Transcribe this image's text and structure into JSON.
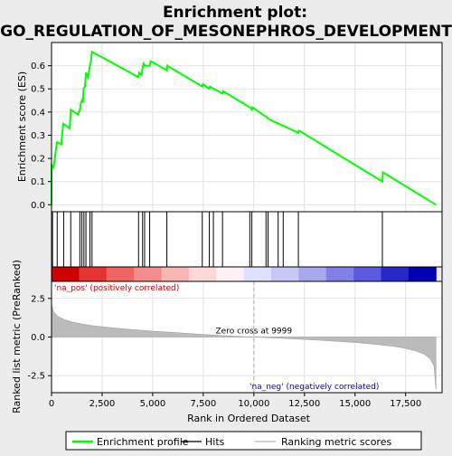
{
  "chart_data": {
    "type": "line",
    "title": "Enrichment plot:\nGO_REGULATION_OF_MESONEPHROS_DEVELOPMENT",
    "title_lines": [
      "Enrichment plot:",
      "GO_REGULATION_OF_MESONEPHROS_DEVELOPMENT"
    ],
    "top_panel": {
      "ylabel": "Enrichment score (ES)",
      "ylim": [
        -0.03,
        0.7
      ],
      "yticks": [
        0.0,
        0.1,
        0.2,
        0.3,
        0.4,
        0.5,
        0.6
      ],
      "ytick_labels": [
        "0.0",
        "0.1",
        "0.2",
        "0.3",
        "0.4",
        "0.5",
        "0.6"
      ],
      "grid": true,
      "series_color": "#00ff00",
      "es_curve": {
        "x": [
          0,
          1,
          100,
          270,
          300,
          480,
          580,
          900,
          950,
          1300,
          1400,
          1450,
          1500,
          1550,
          1580,
          1650,
          1700,
          1800,
          1900,
          1950,
          2000,
          4300,
          4320,
          4450,
          4500,
          4550,
          4620,
          4850,
          4900,
          5700,
          5720,
          7450,
          7480,
          7800,
          7830,
          8000,
          8030,
          8450,
          8480,
          9800,
          9830,
          9900,
          9930,
          10600,
          10630,
          10700,
          10730,
          11200,
          11230,
          11450,
          11480,
          12200,
          12230,
          16350,
          16380,
          19000
        ],
        "y": [
          0.0,
          0.17,
          0.16,
          0.27,
          0.27,
          0.26,
          0.35,
          0.33,
          0.41,
          0.39,
          0.41,
          0.44,
          0.45,
          0.44,
          0.5,
          0.51,
          0.57,
          0.55,
          0.6,
          0.62,
          0.66,
          0.55,
          0.57,
          0.56,
          0.59,
          0.61,
          0.6,
          0.6,
          0.62,
          0.58,
          0.6,
          0.51,
          0.52,
          0.5,
          0.51,
          0.5,
          0.5,
          0.48,
          0.49,
          0.42,
          0.42,
          0.41,
          0.42,
          0.38,
          0.38,
          0.37,
          0.37,
          0.35,
          0.35,
          0.34,
          0.34,
          0.31,
          0.32,
          0.1,
          0.14,
          0.0
        ]
      }
    },
    "hits": [
      50,
      280,
      600,
      950,
      1400,
      1500,
      1600,
      1700,
      1900,
      2000,
      4300,
      4500,
      4600,
      4850,
      5700,
      7450,
      7800,
      8000,
      8450,
      9800,
      9900,
      10600,
      10700,
      11200,
      11450,
      12200,
      16350
    ],
    "colorbar_colors": [
      "#cc0000",
      "#e53333",
      "#f06464",
      "#f58c8c",
      "#f9b4b4",
      "#fcd8d8",
      "#fff0f8",
      "#e0e0ff",
      "#c8c8f8",
      "#a8a8f0",
      "#8080e8",
      "#5a5ae0",
      "#2828c8",
      "#0000b0"
    ],
    "bottom_panel": {
      "ylabel": "Ranked list metric (PreRanked)",
      "xlabel": "Rank in Ordered Dataset",
      "ylim": [
        -3.6,
        3.6
      ],
      "yticks": [
        -2.5,
        0.0,
        2.5
      ],
      "ytick_labels": [
        "-2.5",
        "0.0",
        "2.5"
      ],
      "metric_curve": {
        "x": [
          0,
          100,
          300,
          600,
          1000,
          1500,
          2000,
          3000,
          4000,
          5000,
          6000,
          7000,
          8000,
          9000,
          9999,
          11000,
          12000,
          13000,
          14000,
          15000,
          16000,
          17000,
          17500,
          18000,
          18400,
          18700,
          18900,
          19000
        ],
        "y": [
          2.1,
          1.65,
          1.35,
          1.15,
          0.98,
          0.85,
          0.74,
          0.6,
          0.48,
          0.38,
          0.3,
          0.21,
          0.13,
          0.06,
          0.0,
          -0.06,
          -0.12,
          -0.19,
          -0.27,
          -0.36,
          -0.47,
          -0.62,
          -0.74,
          -0.9,
          -1.1,
          -1.4,
          -1.85,
          -3.4
        ]
      },
      "zero_cross_label": "Zero cross at 9999",
      "zero_cross_x": 9999,
      "pos_label": "'na_pos' (positively correlated)",
      "neg_label": "'na_neg' (negatively correlated)"
    },
    "xlim": [
      0,
      19300
    ],
    "xticks": [
      0,
      2500,
      5000,
      7500,
      10000,
      12500,
      15000,
      17500
    ],
    "xtick_labels": [
      "0",
      "2,500",
      "5,000",
      "7,500",
      "10,000",
      "12,500",
      "15,000",
      "17,500"
    ],
    "legend": {
      "placement": "bottom",
      "items": [
        {
          "label": "Enrichment profile",
          "color": "#00ff00",
          "kind": "line"
        },
        {
          "label": "Hits",
          "color": "#000000",
          "kind": "line"
        },
        {
          "label": "Ranking metric scores",
          "color": "#bbbbbb",
          "kind": "line"
        }
      ]
    }
  }
}
